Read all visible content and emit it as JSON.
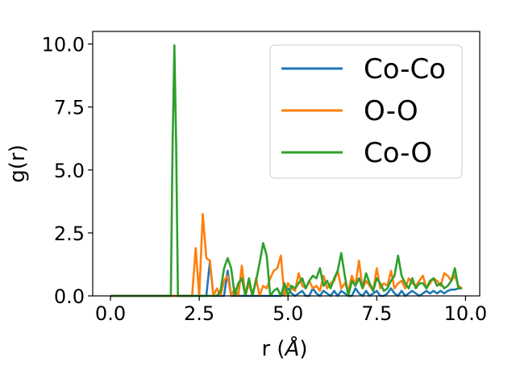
{
  "chart_data": {
    "type": "line",
    "title": "",
    "xlabel": "r (",
    "xlabel_symbol": "Å",
    "xlabel_close": ")",
    "ylabel": "g(r)",
    "xlim": [
      -0.5,
      10.4
    ],
    "ylim": [
      0,
      10.5
    ],
    "xticks": [
      "0.0",
      "2.5",
      "5.0",
      "7.5",
      "10.0"
    ],
    "yticks": [
      "0.0",
      "2.5",
      "5.0",
      "7.5",
      "10.0"
    ],
    "grid": false,
    "legend_position": "top-right",
    "series": [
      {
        "name": "Co-Co",
        "color": "#1f77b4",
        "x": [
          0,
          0.1,
          0.2,
          0.3,
          0.4,
          0.5,
          0.6,
          0.7,
          0.8,
          0.9,
          1.0,
          1.1,
          1.2,
          1.3,
          1.4,
          1.5,
          1.6,
          1.7,
          1.8,
          1.9,
          2.0,
          2.1,
          2.2,
          2.3,
          2.4,
          2.5,
          2.6,
          2.7,
          2.8,
          2.9,
          3.0,
          3.1,
          3.2,
          3.3,
          3.4,
          3.5,
          3.6,
          3.7,
          3.8,
          3.9,
          4.0,
          4.1,
          4.2,
          4.3,
          4.4,
          4.5,
          4.6,
          4.7,
          4.8,
          4.9,
          5.0,
          5.1,
          5.2,
          5.3,
          5.4,
          5.5,
          5.6,
          5.7,
          5.8,
          5.9,
          6.0,
          6.1,
          6.2,
          6.3,
          6.4,
          6.5,
          6.6,
          6.7,
          6.8,
          6.9,
          7.0,
          7.1,
          7.2,
          7.3,
          7.4,
          7.5,
          7.6,
          7.7,
          7.8,
          7.9,
          8.0,
          8.1,
          8.2,
          8.3,
          8.4,
          8.5,
          8.6,
          8.7,
          8.8,
          8.9,
          9.0,
          9.1,
          9.2,
          9.3,
          9.4,
          9.5,
          9.6,
          9.7,
          9.8,
          9.9
        ],
        "y": [
          0,
          0,
          0,
          0,
          0,
          0,
          0,
          0,
          0,
          0,
          0,
          0,
          0,
          0,
          0,
          0,
          0,
          0,
          0,
          0,
          0,
          0,
          0,
          0,
          0,
          0,
          0,
          0,
          1.35,
          0,
          0,
          0,
          0,
          1.0,
          0,
          0,
          0,
          0,
          0,
          0,
          0,
          0,
          0,
          0,
          0,
          0,
          0,
          0,
          0,
          0.1,
          0.3,
          0.1,
          0,
          0.1,
          0.2,
          0,
          0,
          0.3,
          0.1,
          0,
          0.2,
          0.1,
          0,
          0.2,
          0,
          0.2,
          0.1,
          0,
          0,
          0.3,
          0.1,
          0,
          0.2,
          0,
          0.1,
          0.2,
          0,
          0,
          0.1,
          0.3,
          0.1,
          0,
          0.2,
          0,
          0.1,
          0.2,
          0.1,
          0,
          0.1,
          0.2,
          0.1,
          0.2,
          0.1,
          0.2,
          0.1,
          0.2,
          0.25,
          0.25,
          0.3,
          0.3
        ]
      },
      {
        "name": "O-O",
        "color": "#ff7f0e",
        "x": [
          0,
          0.1,
          0.2,
          0.3,
          0.4,
          0.5,
          0.6,
          0.7,
          0.8,
          0.9,
          1.0,
          1.1,
          1.2,
          1.3,
          1.4,
          1.5,
          1.6,
          1.7,
          1.8,
          1.9,
          2.0,
          2.1,
          2.2,
          2.3,
          2.4,
          2.5,
          2.6,
          2.7,
          2.8,
          2.9,
          3.0,
          3.1,
          3.2,
          3.3,
          3.4,
          3.5,
          3.6,
          3.7,
          3.8,
          3.9,
          4.0,
          4.1,
          4.2,
          4.3,
          4.4,
          4.5,
          4.6,
          4.7,
          4.8,
          4.9,
          5.0,
          5.1,
          5.2,
          5.3,
          5.4,
          5.5,
          5.6,
          5.7,
          5.8,
          5.9,
          6.0,
          6.1,
          6.2,
          6.3,
          6.4,
          6.5,
          6.6,
          6.7,
          6.8,
          6.9,
          7.0,
          7.1,
          7.2,
          7.3,
          7.4,
          7.5,
          7.6,
          7.7,
          7.8,
          7.9,
          8.0,
          8.1,
          8.2,
          8.3,
          8.4,
          8.5,
          8.6,
          8.7,
          8.8,
          8.9,
          9.0,
          9.1,
          9.2,
          9.3,
          9.4,
          9.5,
          9.6,
          9.7,
          9.8,
          9.9
        ],
        "y": [
          0,
          0,
          0,
          0,
          0,
          0,
          0,
          0,
          0,
          0,
          0,
          0,
          0,
          0,
          0,
          0,
          0,
          0,
          0,
          0,
          0,
          0,
          0,
          0,
          1.9,
          0,
          3.25,
          1.5,
          1.4,
          0,
          0.3,
          0,
          0.6,
          0.8,
          0,
          0.3,
          0,
          1.2,
          0,
          0.5,
          0,
          0.7,
          0,
          0.4,
          0.3,
          0.7,
          1.0,
          1.1,
          1.6,
          0,
          0.5,
          0.3,
          0.2,
          0.9,
          0.4,
          0.3,
          0.6,
          0.3,
          0.4,
          0.2,
          0.8,
          0.3,
          0.5,
          0.6,
          1.0,
          0.3,
          0.5,
          0.2,
          0.8,
          0.4,
          1.4,
          0.3,
          0.6,
          0.4,
          0.2,
          1.1,
          0.3,
          0.5,
          0.4,
          1.0,
          0.3,
          0.5,
          0.6,
          0.3,
          0.7,
          0.5,
          0.4,
          0.6,
          0.8,
          0.3,
          0.5,
          0.7,
          0.6,
          0.4,
          0.9,
          0.8,
          0.6,
          0.8,
          0.4,
          0.3
        ]
      },
      {
        "name": "Co-O",
        "color": "#2ca02c",
        "x": [
          0,
          0.1,
          0.2,
          0.3,
          0.4,
          0.5,
          0.6,
          0.7,
          0.8,
          0.9,
          1.0,
          1.1,
          1.2,
          1.3,
          1.4,
          1.5,
          1.6,
          1.7,
          1.75,
          1.8,
          1.85,
          1.9,
          2.0,
          2.1,
          2.2,
          2.3,
          2.4,
          2.5,
          2.6,
          2.7,
          2.8,
          2.9,
          3.0,
          3.1,
          3.2,
          3.3,
          3.4,
          3.5,
          3.6,
          3.7,
          3.8,
          3.9,
          4.0,
          4.1,
          4.2,
          4.3,
          4.4,
          4.5,
          4.6,
          4.7,
          4.8,
          4.9,
          5.0,
          5.1,
          5.2,
          5.3,
          5.4,
          5.5,
          5.6,
          5.7,
          5.8,
          5.9,
          6.0,
          6.1,
          6.2,
          6.3,
          6.4,
          6.5,
          6.6,
          6.7,
          6.8,
          6.9,
          7.0,
          7.1,
          7.2,
          7.3,
          7.4,
          7.5,
          7.6,
          7.7,
          7.8,
          7.9,
          8.0,
          8.1,
          8.2,
          8.3,
          8.4,
          8.5,
          8.6,
          8.7,
          8.8,
          8.9,
          9.0,
          9.1,
          9.2,
          9.3,
          9.4,
          9.5,
          9.6,
          9.7,
          9.8,
          9.9
        ],
        "y": [
          0,
          0,
          0,
          0,
          0,
          0,
          0,
          0,
          0,
          0,
          0,
          0,
          0,
          0,
          0,
          0,
          0,
          0,
          6.0,
          9.95,
          6.0,
          0,
          0,
          0,
          0,
          0,
          0,
          0,
          0,
          0,
          0,
          0,
          0,
          0.2,
          1.1,
          1.5,
          1.1,
          0,
          0.5,
          0.7,
          0,
          0.7,
          0,
          0.6,
          1.3,
          2.1,
          1.6,
          0,
          0.2,
          0.3,
          0,
          0.5,
          0,
          0.4,
          0.3,
          0.5,
          0.7,
          0.3,
          0.6,
          0.8,
          0.7,
          1.1,
          0.4,
          0.6,
          0.3,
          0.7,
          1.0,
          1.7,
          0.8,
          0,
          0.6,
          0.4,
          0.7,
          0.3,
          0.9,
          0.5,
          0.2,
          0.7,
          0.5,
          0.2,
          0.3,
          0.6,
          0.8,
          1.6,
          0.8,
          0.5,
          0.3,
          0.7,
          0.3,
          0.5,
          0.5,
          0.3,
          0.6,
          0.7,
          0.4,
          0.5,
          0.3,
          0.4,
          0.6,
          1.1,
          0.3,
          0.3
        ]
      }
    ]
  }
}
